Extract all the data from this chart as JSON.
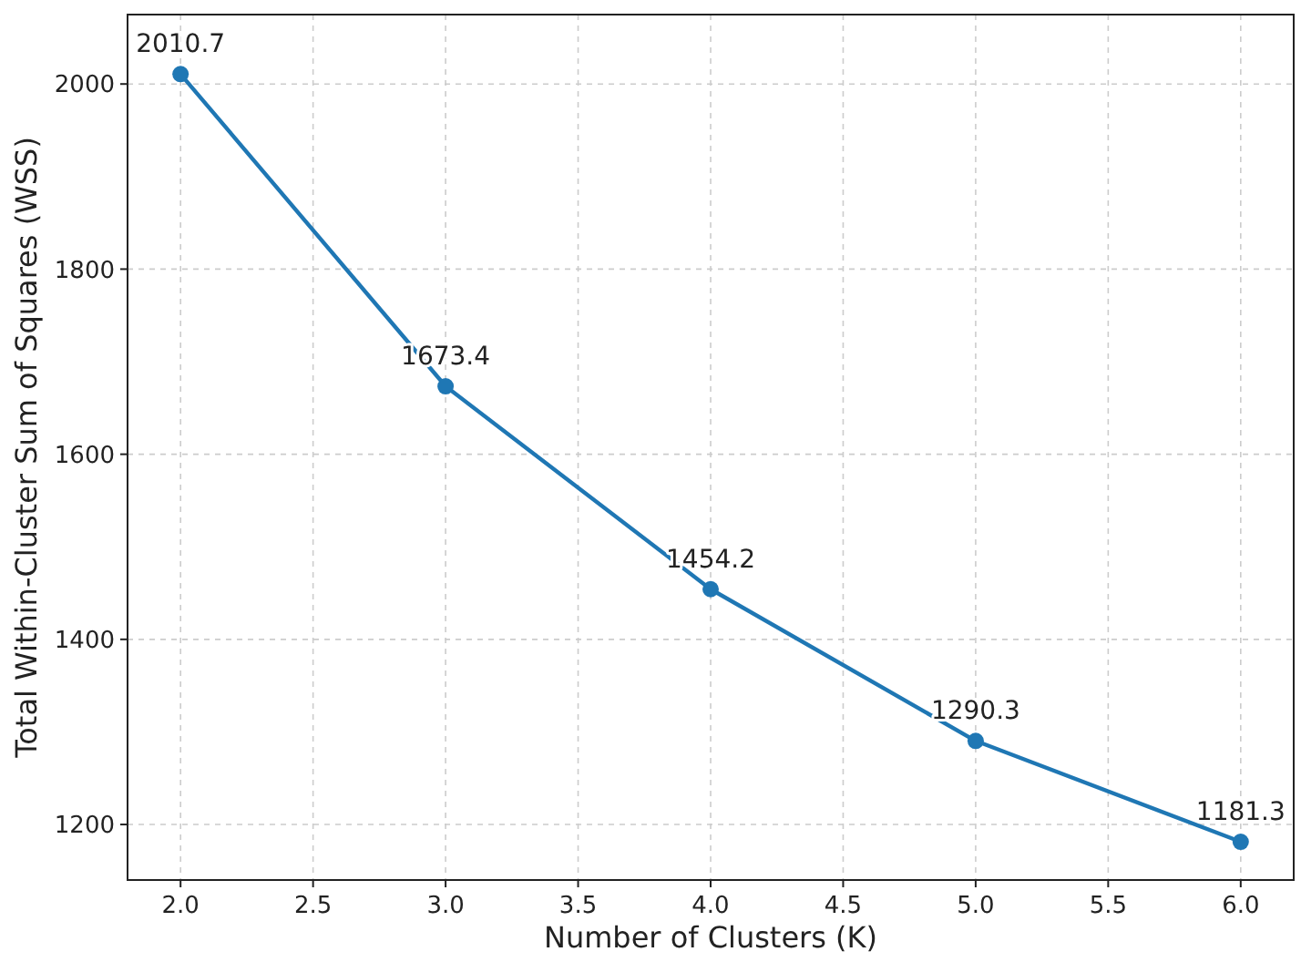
{
  "chart_data": {
    "type": "line",
    "xlabel": "Number of Clusters (K)",
    "ylabel": "Total Within-Cluster Sum of Squares (WSS)",
    "x": [
      2,
      3,
      4,
      5,
      6
    ],
    "series": [
      {
        "color": "#1f77b4",
        "values": [
          2010.7,
          1673.4,
          1454.2,
          1290.3,
          1181.3
        ]
      }
    ],
    "xlim": [
      1.8,
      6.2
    ],
    "xticks": [
      {
        "value": 2,
        "label": "2.0"
      },
      {
        "value": 2.5,
        "label": "2.5"
      },
      {
        "value": 3,
        "label": "3.0"
      },
      {
        "value": 3.5,
        "label": "3.5"
      },
      {
        "value": 4,
        "label": "4.0"
      },
      {
        "value": 4.5,
        "label": "4.5"
      },
      {
        "value": 5,
        "label": "5.0"
      },
      {
        "value": 5.5,
        "label": "5.5"
      },
      {
        "value": 6,
        "label": "6.0"
      }
    ],
    "ylim": [
      1140,
      2075
    ],
    "yticks": [
      1200,
      1400,
      1600,
      1800,
      2000
    ],
    "grid": true,
    "marker": "circle",
    "line_style": "solid",
    "data_labels": true
  }
}
